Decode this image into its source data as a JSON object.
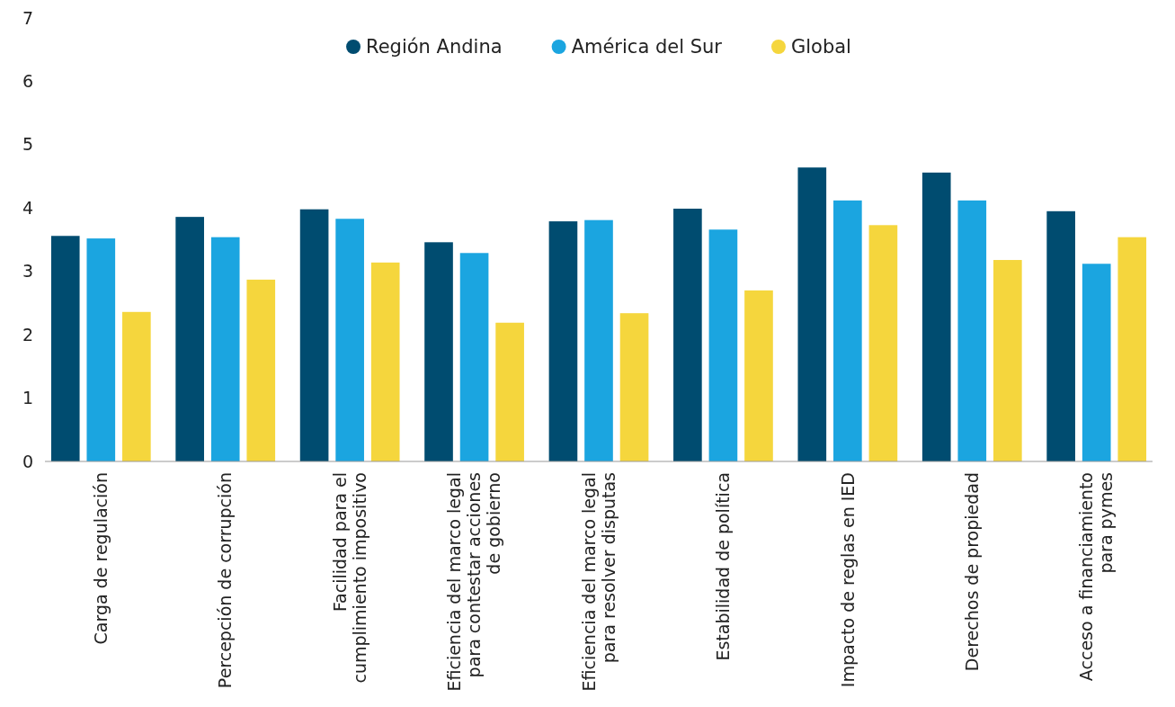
{
  "chart_data": {
    "type": "bar",
    "categories": [
      "Carga de regulación",
      "Percepción de corrupción",
      "Facilidad para el cumplimiento impositivo",
      "Eficiencia del marco legal para contestar acciones de gobierno",
      "Eficiencia del marco legal para resolver disputas",
      "Estabilidad de política",
      "Impacto de reglas en IED",
      "Derechos de propiedad",
      "Acceso a financiamiento para pymes"
    ],
    "series": [
      {
        "name": "Región Andina",
        "color": "#004c70",
        "values": [
          3.56,
          3.86,
          3.98,
          3.46,
          3.79,
          3.99,
          4.64,
          4.56,
          3.95
        ]
      },
      {
        "name": "América del Sur",
        "color": "#1ba5e0",
        "values": [
          3.52,
          3.54,
          3.83,
          3.29,
          3.81,
          3.66,
          4.12,
          4.12,
          3.12
        ]
      },
      {
        "name": "Global",
        "color": "#f5d63d",
        "values": [
          2.36,
          2.87,
          3.14,
          2.19,
          2.34,
          2.7,
          3.73,
          3.18,
          3.54
        ]
      }
    ],
    "ylim": [
      0,
      7
    ],
    "yticks": [
      0,
      1,
      2,
      3,
      4,
      5,
      6,
      7
    ],
    "legend": "top",
    "grid": false
  }
}
